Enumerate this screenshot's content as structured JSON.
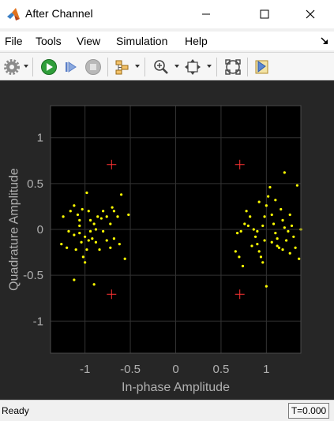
{
  "window": {
    "title": "After Channel"
  },
  "menu": {
    "file": "File",
    "tools": "Tools",
    "view": "View",
    "simulation": "Simulation",
    "help": "Help"
  },
  "status": {
    "text": "Ready",
    "time": "T=0.000"
  },
  "colors": {
    "figure_bg": "#262626",
    "axes_bg": "#000000",
    "points": "#ffff00",
    "reference": "#ff3333",
    "grid": "#333333",
    "text": "#b0b0b0"
  },
  "chart_data": {
    "type": "scatter",
    "xlabel": "In-phase Amplitude",
    "ylabel": "Quadrature Amplitude",
    "xlim": [
      -1.38,
      1.38
    ],
    "ylim": [
      -1.35,
      1.35
    ],
    "xticks": [
      -1,
      -0.5,
      0,
      0.5,
      1
    ],
    "xtick_labels": [
      "-1",
      "-0.5",
      "0",
      "0.5",
      "1"
    ],
    "yticks": [
      1,
      0.5,
      0,
      -0.5,
      -1
    ],
    "ytick_labels": [
      "1",
      "0.5",
      "0",
      "-0.5",
      "-1"
    ],
    "grid": true,
    "reference_points": [
      {
        "x": -0.707,
        "y": 0.707
      },
      {
        "x": 0.707,
        "y": 0.707
      },
      {
        "x": -0.707,
        "y": -0.707
      },
      {
        "x": 0.707,
        "y": -0.707
      }
    ],
    "points": [
      {
        "x": -1.24,
        "y": 0.14
      },
      {
        "x": -1.16,
        "y": 0.2
      },
      {
        "x": -1.12,
        "y": 0.26
      },
      {
        "x": -1.08,
        "y": 0.16
      },
      {
        "x": -1.06,
        "y": 0.1
      },
      {
        "x": -1.03,
        "y": 0.22
      },
      {
        "x": -0.98,
        "y": 0.4
      },
      {
        "x": -0.96,
        "y": 0.2
      },
      {
        "x": -0.94,
        "y": 0.1
      },
      {
        "x": -0.9,
        "y": 0.06
      },
      {
        "x": -0.86,
        "y": 0.14
      },
      {
        "x": -0.82,
        "y": 0.12
      },
      {
        "x": -0.8,
        "y": 0.2
      },
      {
        "x": -0.76,
        "y": 0.14
      },
      {
        "x": -0.72,
        "y": 0.06
      },
      {
        "x": -0.68,
        "y": 0.2
      },
      {
        "x": -0.64,
        "y": 0.14
      },
      {
        "x": -0.6,
        "y": 0.38
      },
      {
        "x": -0.52,
        "y": 0.16
      },
      {
        "x": -1.26,
        "y": -0.16
      },
      {
        "x": -1.2,
        "y": -0.2
      },
      {
        "x": -1.18,
        "y": -0.02
      },
      {
        "x": -1.12,
        "y": -0.06
      },
      {
        "x": -1.1,
        "y": -0.22
      },
      {
        "x": -1.06,
        "y": -0.04
      },
      {
        "x": -1.04,
        "y": -0.14
      },
      {
        "x": -1.02,
        "y": -0.3
      },
      {
        "x": -1.0,
        "y": -0.08
      },
      {
        "x": -0.98,
        "y": -0.22
      },
      {
        "x": -0.96,
        "y": -0.12
      },
      {
        "x": -0.94,
        "y": -0.02
      },
      {
        "x": -0.92,
        "y": -0.1
      },
      {
        "x": -0.88,
        "y": -0.14
      },
      {
        "x": -0.84,
        "y": -0.22
      },
      {
        "x": -0.8,
        "y": -0.02
      },
      {
        "x": -0.76,
        "y": -0.12
      },
      {
        "x": -0.72,
        "y": -0.2
      },
      {
        "x": -0.68,
        "y": -0.1
      },
      {
        "x": -0.62,
        "y": -0.16
      },
      {
        "x": -0.56,
        "y": -0.32
      },
      {
        "x": -1.12,
        "y": -0.55
      },
      {
        "x": -0.9,
        "y": -0.6
      },
      {
        "x": -1.06,
        "y": 0.04
      },
      {
        "x": -0.88,
        "y": 0.0
      },
      {
        "x": -0.7,
        "y": 0.24
      },
      {
        "x": -1.0,
        "y": -0.36
      },
      {
        "x": 0.66,
        "y": -0.24
      },
      {
        "x": 0.7,
        "y": -0.3
      },
      {
        "x": 0.68,
        "y": -0.04
      },
      {
        "x": 0.72,
        "y": -0.02
      },
      {
        "x": 0.76,
        "y": 0.06
      },
      {
        "x": 0.78,
        "y": 0.2
      },
      {
        "x": 0.82,
        "y": 0.14
      },
      {
        "x": 0.86,
        "y": 0.0
      },
      {
        "x": 0.88,
        "y": -0.08
      },
      {
        "x": 0.9,
        "y": -0.16
      },
      {
        "x": 0.92,
        "y": -0.24
      },
      {
        "x": 0.94,
        "y": -0.3
      },
      {
        "x": 0.96,
        "y": -0.36
      },
      {
        "x": 0.9,
        "y": -0.02
      },
      {
        "x": 0.96,
        "y": 0.04
      },
      {
        "x": 0.98,
        "y": 0.14
      },
      {
        "x": 1.0,
        "y": 0.26
      },
      {
        "x": 1.02,
        "y": 0.36
      },
      {
        "x": 1.04,
        "y": 0.46
      },
      {
        "x": 1.06,
        "y": 0.16
      },
      {
        "x": 1.08,
        "y": 0.06
      },
      {
        "x": 1.1,
        "y": -0.04
      },
      {
        "x": 1.12,
        "y": -0.1
      },
      {
        "x": 1.14,
        "y": -0.2
      },
      {
        "x": 1.16,
        "y": 0.22
      },
      {
        "x": 1.18,
        "y": 0.1
      },
      {
        "x": 1.2,
        "y": 0.02
      },
      {
        "x": 1.22,
        "y": -0.12
      },
      {
        "x": 1.24,
        "y": -0.02
      },
      {
        "x": 1.26,
        "y": 0.16
      },
      {
        "x": 1.28,
        "y": 0.04
      },
      {
        "x": 1.3,
        "y": -0.08
      },
      {
        "x": 1.32,
        "y": -0.2
      },
      {
        "x": 1.34,
        "y": 0.48
      },
      {
        "x": 1.36,
        "y": -0.32
      },
      {
        "x": 1.38,
        "y": 0.0
      },
      {
        "x": 1.26,
        "y": -0.26
      },
      {
        "x": 1.2,
        "y": 0.62
      },
      {
        "x": 1.1,
        "y": 0.32
      },
      {
        "x": 0.98,
        "y": -0.12
      },
      {
        "x": 0.84,
        "y": -0.18
      },
      {
        "x": 1.0,
        "y": -0.62
      },
      {
        "x": 1.12,
        "y": -0.18
      },
      {
        "x": 0.8,
        "y": 0.04
      },
      {
        "x": 0.92,
        "y": 0.3
      },
      {
        "x": 1.18,
        "y": -0.22
      },
      {
        "x": 1.06,
        "y": -0.14
      },
      {
        "x": 0.74,
        "y": -0.4
      }
    ]
  }
}
